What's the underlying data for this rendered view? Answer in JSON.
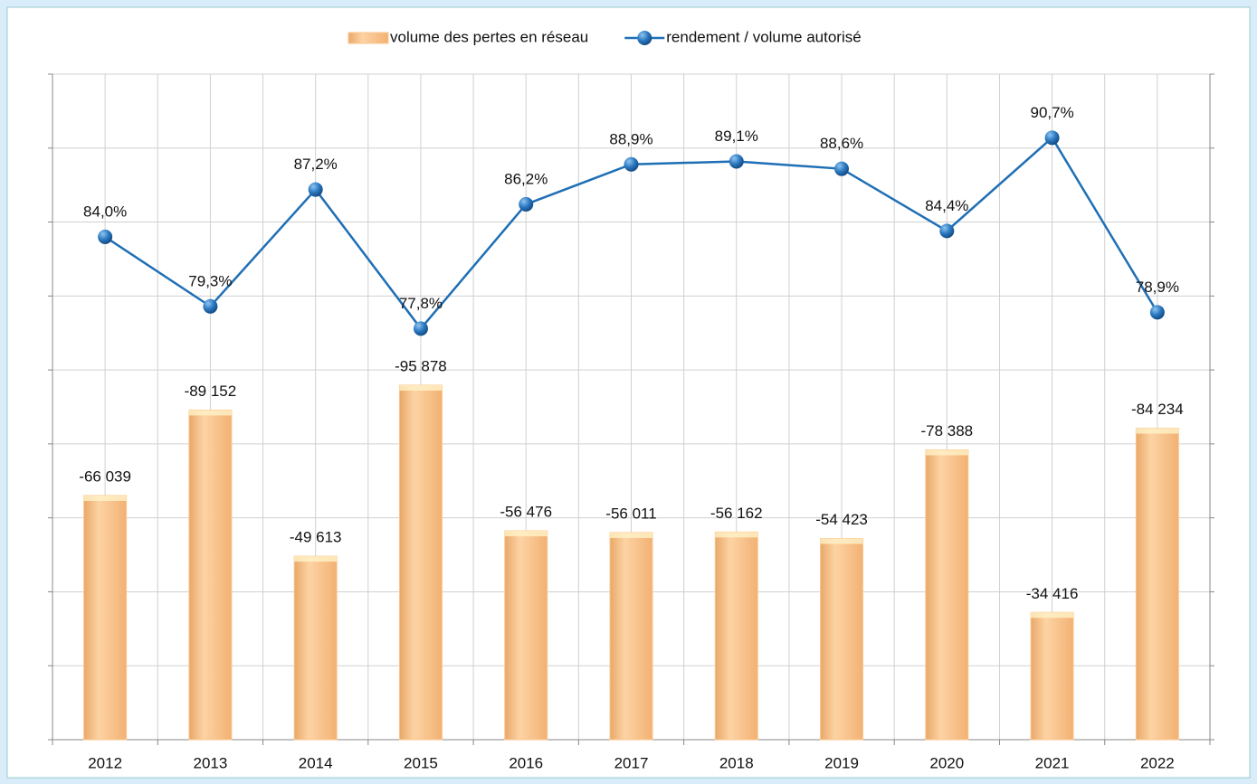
{
  "chart_data": {
    "type": "bar_line",
    "categories": [
      "2012",
      "2013",
      "2014",
      "2015",
      "2016",
      "2017",
      "2018",
      "2019",
      "2020",
      "2021",
      "2022"
    ],
    "series": [
      {
        "name": "volume des pertes en réseau",
        "type": "bar",
        "color": "#fcc68e",
        "values": [
          -66039,
          -89152,
          -49613,
          -95878,
          -56476,
          -56011,
          -56162,
          -54423,
          -78388,
          -34416,
          -84234
        ],
        "value_labels": [
          "-66 039",
          "-89 152",
          "-49 613",
          "-95 878",
          "-56 476",
          "-56 011",
          "-56 162",
          "-54 423",
          "-78 388",
          "-34 416",
          "-84 234"
        ]
      },
      {
        "name": "rendement / volume autorisé",
        "type": "line",
        "axis": "y2",
        "color": "#1f6fb5",
        "values": [
          84.0,
          79.3,
          87.2,
          77.8,
          86.2,
          88.9,
          89.1,
          88.6,
          84.4,
          90.7,
          78.9
        ],
        "value_labels": [
          "84,0%",
          "79,3%",
          "87,2%",
          "77,8%",
          "86,2%",
          "88,9%",
          "89,1%",
          "88,6%",
          "84,4%",
          "90,7%",
          "78,9%"
        ]
      }
    ],
    "ylim": [
      0,
      -180000
    ],
    "yticks": [
      0,
      -20000,
      -40000,
      -60000,
      -80000,
      -100000,
      -120000,
      -140000,
      -160000,
      -180000
    ],
    "y2lim": [
      50,
      95
    ],
    "y2ticks": [
      50,
      55,
      60,
      65,
      70,
      75,
      80,
      85,
      90,
      95
    ],
    "grid": true,
    "legend": "top"
  }
}
